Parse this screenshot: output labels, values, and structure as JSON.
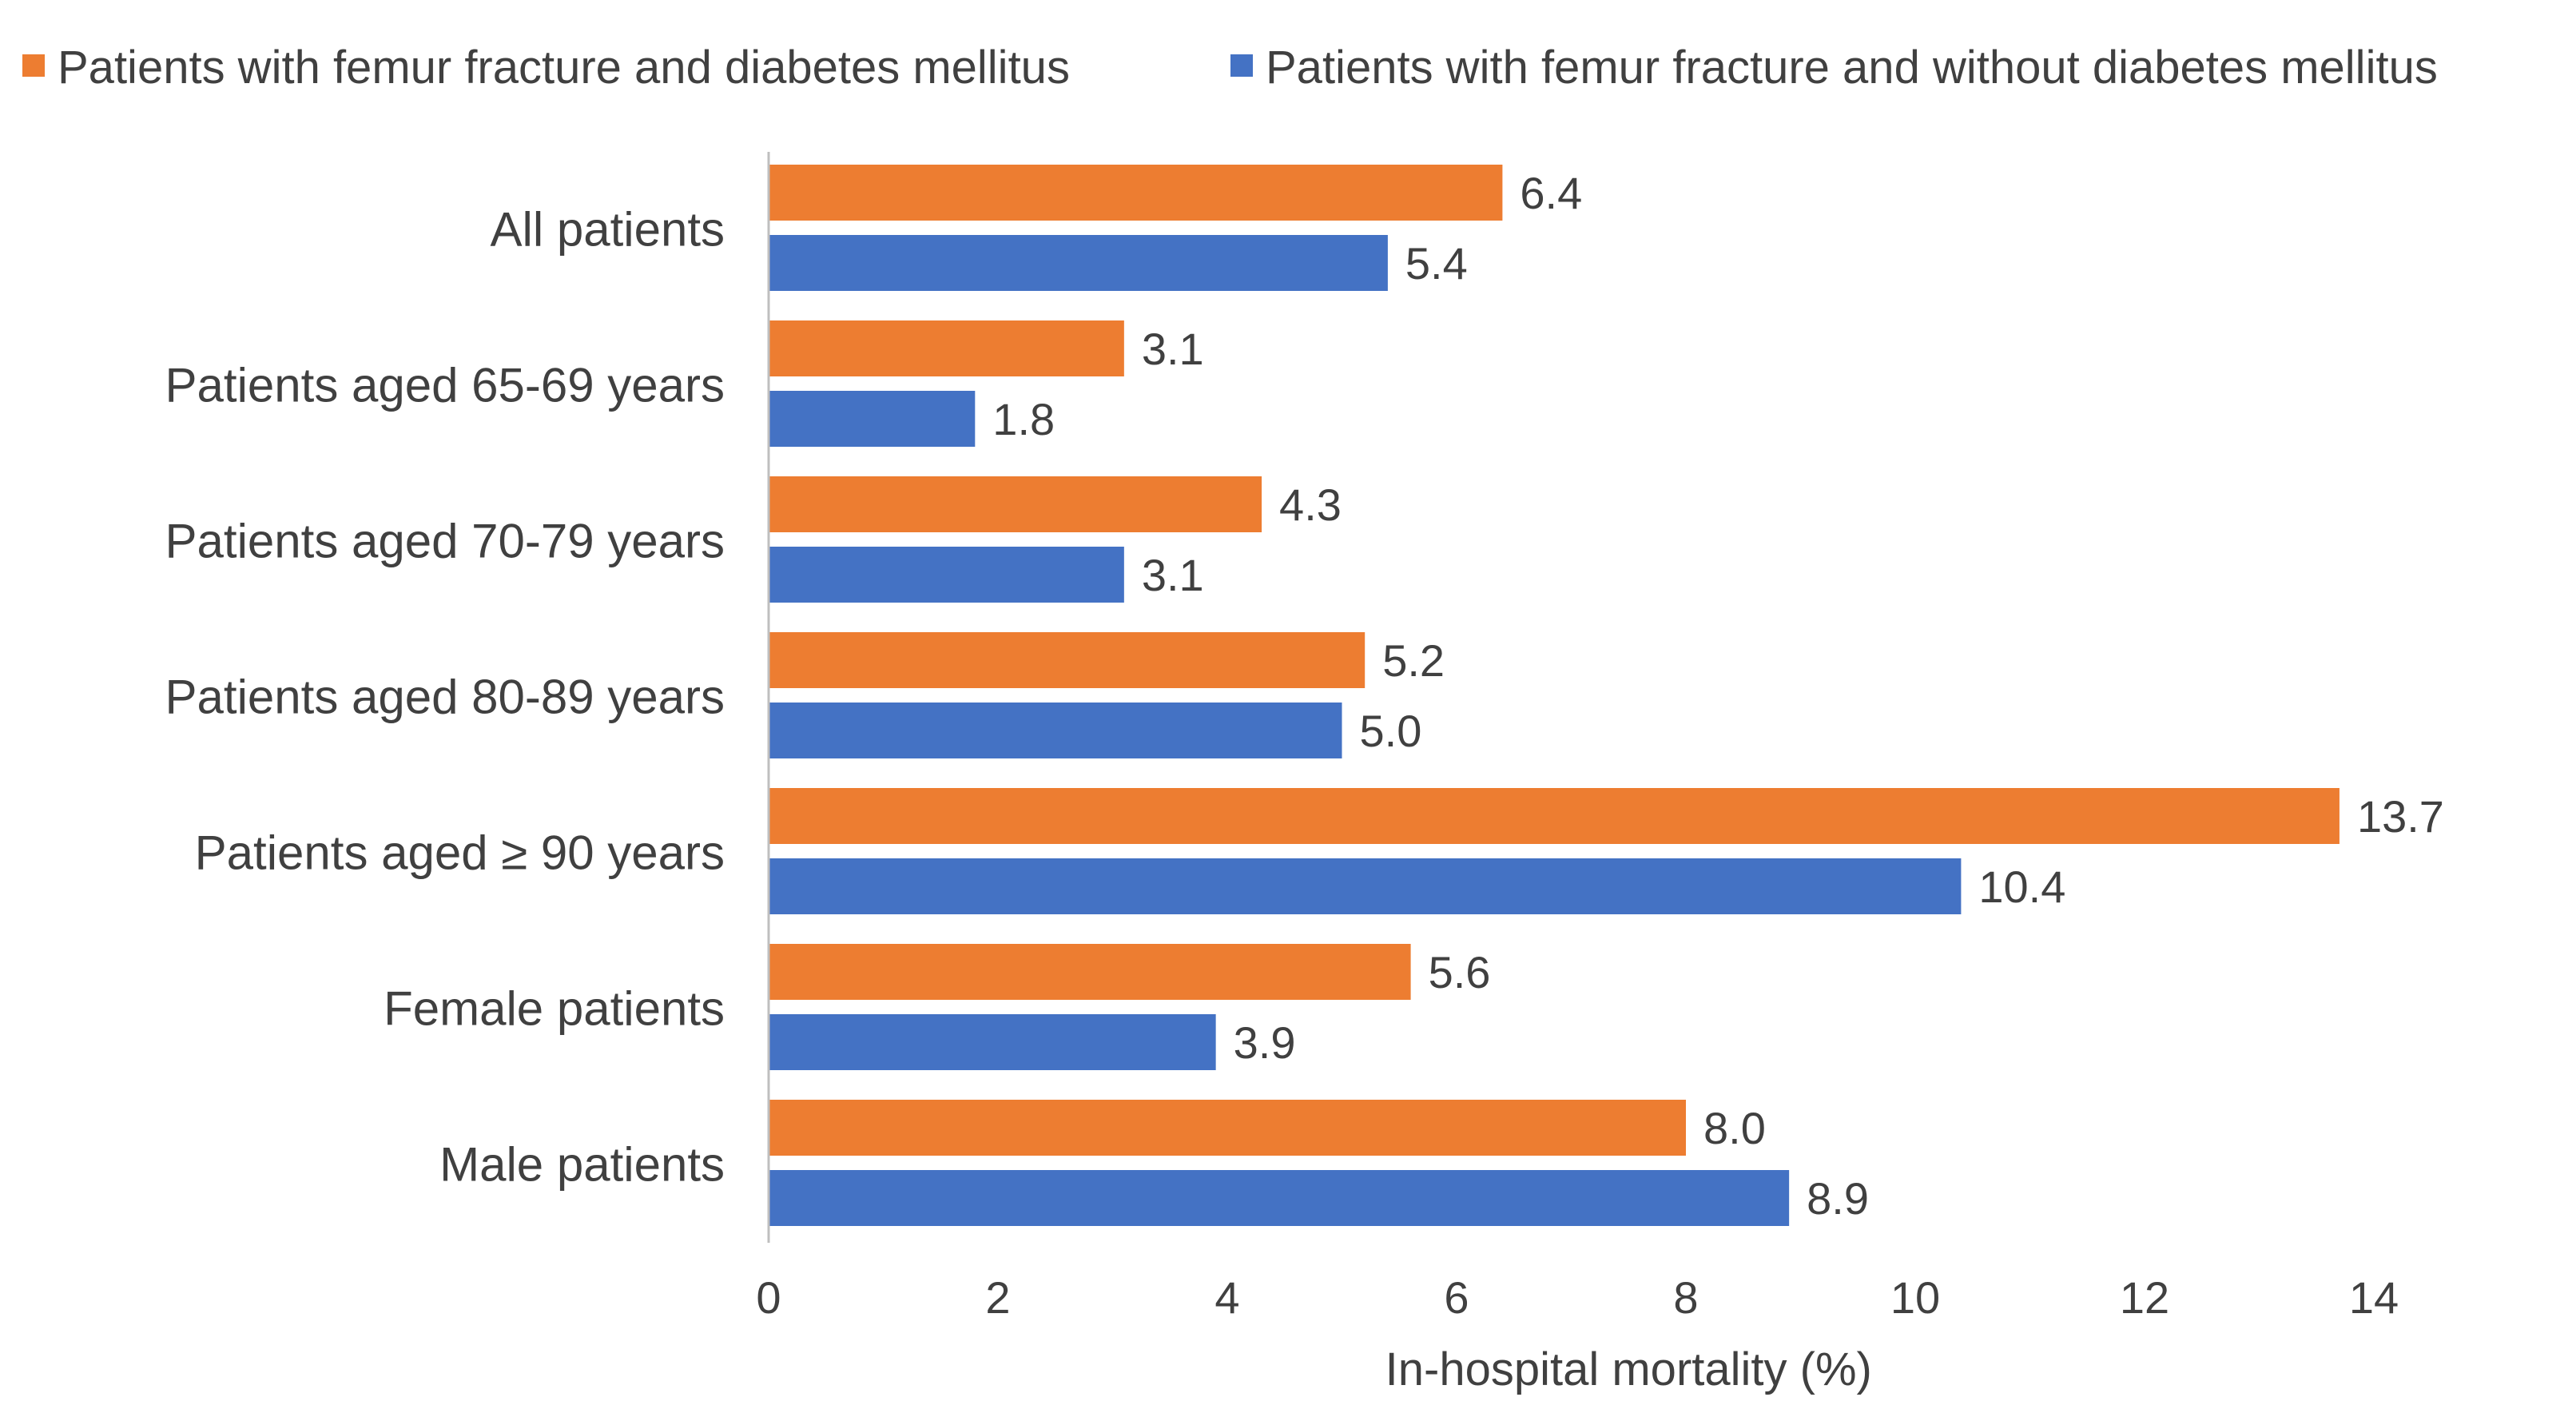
{
  "chart_data": {
    "type": "bar",
    "orientation": "horizontal",
    "title": "",
    "xlabel": "In-hospital mortality (%)",
    "ylabel": "",
    "xlim": [
      0,
      14
    ],
    "xticks": [
      0,
      2,
      4,
      6,
      8,
      10,
      12,
      14
    ],
    "grid": false,
    "legend_position": "top",
    "categories": [
      "All patients",
      "Patients aged 65-69 years",
      "Patients aged 70-79 years",
      "Patients aged 80-89 years",
      "Patients aged ≥ 90 years",
      "Female patients",
      "Male patients"
    ],
    "series": [
      {
        "name": "Patients with femur fracture and diabetes mellitus",
        "color": "#ED7D31",
        "values": [
          6.4,
          3.1,
          4.3,
          5.2,
          13.7,
          5.6,
          8.0
        ],
        "labels": [
          "6.4",
          "3.1",
          "4.3",
          "5.2",
          "13.7",
          "5.6",
          "8.0"
        ]
      },
      {
        "name": "Patients with femur fracture and without diabetes mellitus",
        "color": "#4472C4",
        "values": [
          5.4,
          1.8,
          3.1,
          5.0,
          10.4,
          3.9,
          8.9
        ],
        "labels": [
          "5.4",
          "1.8",
          "3.1",
          "5.0",
          "10.4",
          "3.9",
          "8.9"
        ]
      }
    ]
  }
}
